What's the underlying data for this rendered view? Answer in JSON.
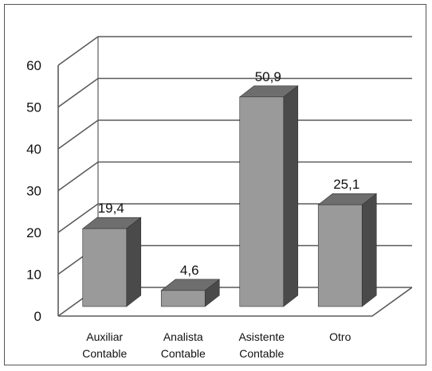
{
  "chart_data": {
    "type": "bar",
    "style": "3d-column",
    "categories": [
      [
        "Auxiliar",
        "Contable"
      ],
      [
        "Analista",
        "Contable"
      ],
      [
        "Asistente",
        "Contable"
      ],
      [
        "Otro"
      ]
    ],
    "values": [
      19.4,
      4.6,
      50.9,
      25.1
    ],
    "data_labels": [
      "19,4",
      "4,6",
      "50,9",
      "25,1"
    ],
    "y_ticks": [
      "0",
      "10",
      "20",
      "30",
      "40",
      "50",
      "60"
    ],
    "ylim": [
      0,
      60
    ],
    "grid": true,
    "legend": "none",
    "title": "",
    "xlabel": "",
    "ylabel": "",
    "colors": {
      "bar_front": "#9a9a9a",
      "bar_side": "#4a4a4a",
      "bar_top": "#6e6e6e",
      "gridline": "#5a5a5a"
    }
  }
}
